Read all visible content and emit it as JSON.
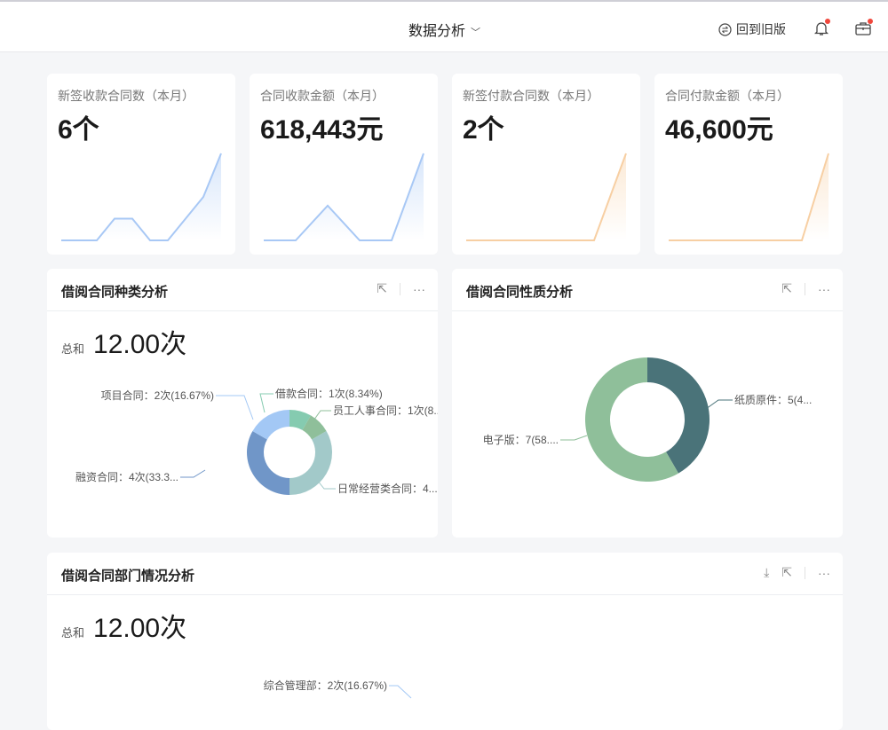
{
  "header": {
    "title": "数据分析",
    "back_label": "回到旧版",
    "icons": [
      "swap-circle-icon",
      "bell-icon",
      "briefcase-icon"
    ]
  },
  "kpis": [
    {
      "label": "新签收款合同数（本月）",
      "value": "6个",
      "color": "#a8c8f5"
    },
    {
      "label": "合同收款金额（本月）",
      "value": "618,443元",
      "color": "#a8c8f5"
    },
    {
      "label": "新签付款合同数（本月）",
      "value": "2个",
      "color": "#f7cfa3"
    },
    {
      "label": "合同付款金额（本月）",
      "value": "46,600元",
      "color": "#f7cfa3"
    }
  ],
  "panels": {
    "type": {
      "title": "借阅合同种类分析",
      "sum_label": "总和",
      "sum_value": "12.00次"
    },
    "nature": {
      "title": "借阅合同性质分析"
    },
    "dept": {
      "title": "借阅合同部门情况分析",
      "sum_label": "总和",
      "sum_value": "12.00次"
    }
  },
  "chart_data": [
    {
      "type": "line",
      "name": "sparkline-1",
      "values": [
        0,
        0,
        0,
        1,
        1,
        0,
        0,
        1,
        2,
        4
      ]
    },
    {
      "type": "line",
      "name": "sparkline-2",
      "values": [
        0,
        0,
        1,
        0,
        0,
        2.5
      ]
    },
    {
      "type": "line",
      "name": "sparkline-3",
      "values": [
        0,
        0,
        0,
        0,
        0,
        1
      ]
    },
    {
      "type": "line",
      "name": "sparkline-4",
      "values": [
        0,
        0,
        0,
        0,
        0,
        0,
        1
      ]
    },
    {
      "type": "pie",
      "donut": true,
      "slices": [
        {
          "label": "借款合同：1次(8.34%)",
          "value": 1,
          "color": "#85cbb0"
        },
        {
          "label": "员工人事合同：1次(8....",
          "value": 1,
          "color": "#8fbf9a"
        },
        {
          "label": "日常经营类合同：4...",
          "value": 4,
          "color": "#a2c9c9"
        },
        {
          "label": "融资合同：4次(33.3...",
          "value": 4,
          "color": "#7096c8"
        },
        {
          "label": "项目合同：2次(16.67%)",
          "value": 2,
          "color": "#a3c8f5"
        }
      ]
    },
    {
      "type": "pie",
      "donut": true,
      "slices": [
        {
          "label": "纸质原件：5(4...",
          "value": 5,
          "color": "#4a7379"
        },
        {
          "label": "电子版：7(58....",
          "value": 7,
          "color": "#8fbf9a"
        }
      ]
    },
    {
      "type": "pie",
      "slices": [
        {
          "label": "综合管理部：2次(16.67%)",
          "value": 2,
          "color": "#a3c8f5"
        }
      ]
    }
  ]
}
